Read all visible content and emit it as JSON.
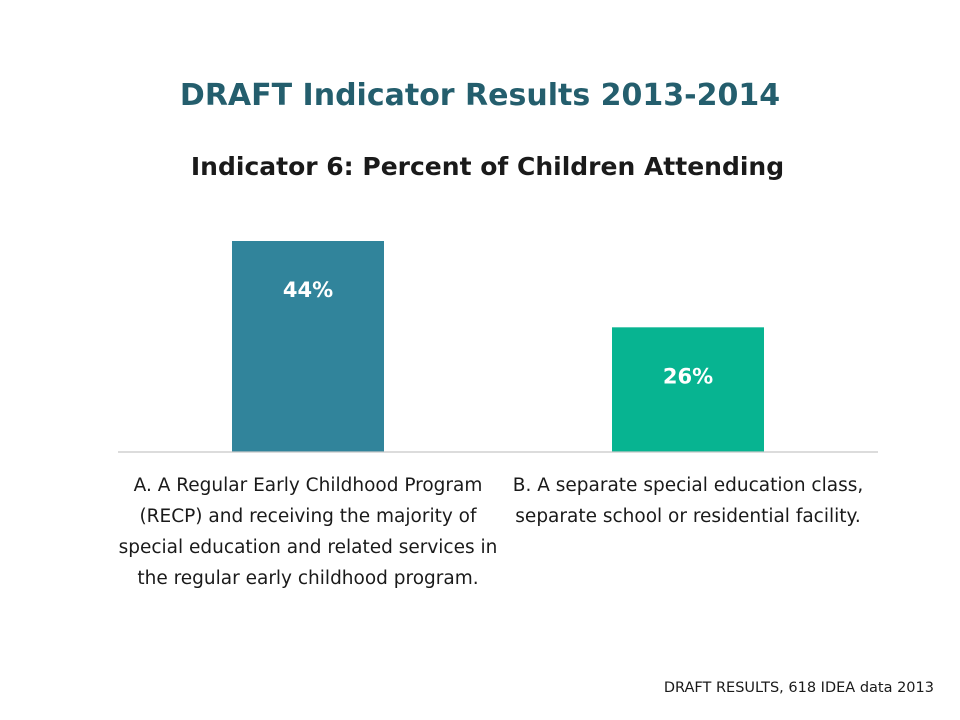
{
  "chart_data": {
    "type": "bar",
    "title": "DRAFT Indicator Results 2013-2014",
    "subtitle": "Indicator 6: Percent of Children Attending",
    "categories": [
      "A.  A Regular Early Childhood Program (RECP) and receiving the majority of special education and related services in the regular early childhood program.",
      "B.  A separate special education class, separate school or residential facility."
    ],
    "values": [
      44,
      26
    ],
    "data_labels": [
      "44%",
      "26%"
    ],
    "colors": [
      "#31849b",
      "#07b491"
    ],
    "ylim": [
      0,
      100
    ],
    "grid": false,
    "legend": "none"
  },
  "footer": "DRAFT RESULTS, 618 IDEA data 2013"
}
